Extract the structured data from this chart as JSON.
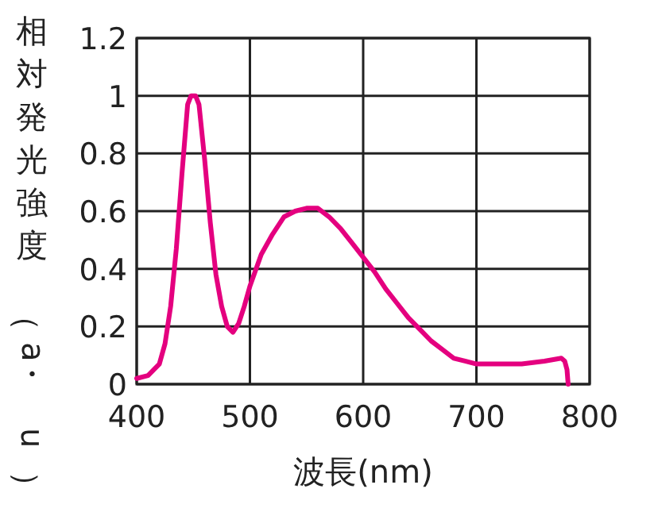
{
  "chart_data": {
    "type": "line",
    "xlabel": "波長(nm)",
    "ylabel": "相対発光強度（a・u）",
    "xlim": [
      400,
      800
    ],
    "ylim": [
      0,
      1.2
    ],
    "xticks": [
      400,
      500,
      600,
      700,
      800
    ],
    "yticks": [
      0,
      0.2,
      0.4,
      0.6,
      0.8,
      1.0,
      1.2
    ],
    "grid": true,
    "series": [
      {
        "color": "#e4007f",
        "x": [
          400,
          410,
          420,
          425,
          430,
          435,
          440,
          445,
          448,
          452,
          455,
          460,
          465,
          470,
          475,
          480,
          485,
          490,
          495,
          500,
          510,
          520,
          530,
          540,
          550,
          560,
          570,
          580,
          590,
          600,
          610,
          620,
          630,
          640,
          650,
          660,
          670,
          680,
          690,
          700,
          720,
          740,
          760,
          775,
          778,
          780,
          781
        ],
        "values": [
          0.02,
          0.03,
          0.07,
          0.14,
          0.27,
          0.47,
          0.73,
          0.97,
          1.0,
          1.0,
          0.97,
          0.78,
          0.56,
          0.38,
          0.27,
          0.2,
          0.18,
          0.21,
          0.27,
          0.34,
          0.45,
          0.52,
          0.58,
          0.6,
          0.61,
          0.61,
          0.58,
          0.54,
          0.49,
          0.44,
          0.39,
          0.33,
          0.28,
          0.23,
          0.19,
          0.15,
          0.12,
          0.09,
          0.08,
          0.07,
          0.07,
          0.07,
          0.08,
          0.09,
          0.08,
          0.05,
          0.0
        ]
      }
    ]
  }
}
